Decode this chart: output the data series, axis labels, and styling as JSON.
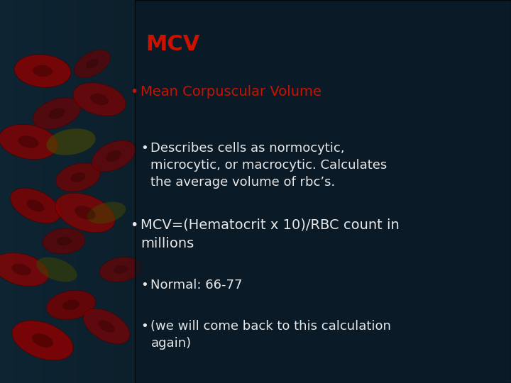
{
  "title": "MCV",
  "title_color": "#cc1100",
  "title_fontsize": 22,
  "background_color": "#0c1e2c",
  "text_color": "#e8e8e8",
  "red_color": "#cc1100",
  "bullet1_label": "Mean Corpuscular Volume",
  "bullet1_color": "#cc1100",
  "bullet1_fontsize": 14,
  "sub_bullet1_text": "Describes cells as normocytic,\nmicrocytic, or macrocytic. Calculates\nthe average volume of rbc’s.",
  "sub_bullet1_fontsize": 13,
  "bullet2_text": "MCV=(Hematocrit x 10)/RBC count in\nmillions",
  "bullet2_fontsize": 14,
  "sub_bullet2a_text": "Normal: 66-77",
  "sub_bullet2b_text": "(we will come back to this calculation\nagain)",
  "sub_fontsize": 13,
  "figsize": [
    7.2,
    5.4
  ],
  "dpi": 100
}
